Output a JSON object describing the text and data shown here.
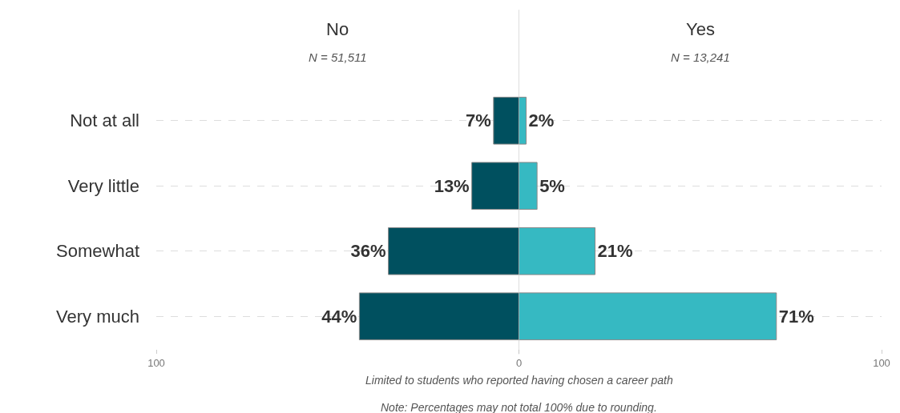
{
  "chart_data": [
    {
      "type": "bar",
      "orientation": "horizontal",
      "title": "No",
      "subtitle": "N = 51,511",
      "categories": [
        "Not at all",
        "Very little",
        "Somewhat",
        "Very much"
      ],
      "series": [
        {
          "color": "#00505f",
          "values": [
            7,
            13,
            36,
            44
          ],
          "value_labels": [
            "7%",
            "13%",
            "36%",
            "44%"
          ]
        }
      ],
      "xlim": [
        100,
        0
      ],
      "xticks": [
        100,
        0
      ],
      "grid": "y",
      "legend": false,
      "ref_lines": [
        {
          "axis": "x",
          "value": 0,
          "color": "#bbbbbb"
        }
      ],
      "annotations": [
        "Limited to students who reported having chosen a career path",
        "Note: Percentages may not total 100% due to rounding."
      ]
    },
    {
      "type": "bar",
      "orientation": "horizontal",
      "title": "Yes",
      "subtitle": "N = 13,241",
      "categories": [
        "Not at all",
        "Very little",
        "Somewhat",
        "Very much"
      ],
      "series": [
        {
          "color": "#36b9c2",
          "values": [
            2,
            5,
            21,
            71
          ],
          "value_labels": [
            "2%",
            "5%",
            "21%",
            "71%"
          ]
        }
      ],
      "xlim": [
        0,
        100
      ],
      "xticks": [
        {
          "value": 0,
          "label": null
        },
        100
      ],
      "grid": "y",
      "legend": false,
      "tick_labels": "x"
    }
  ]
}
